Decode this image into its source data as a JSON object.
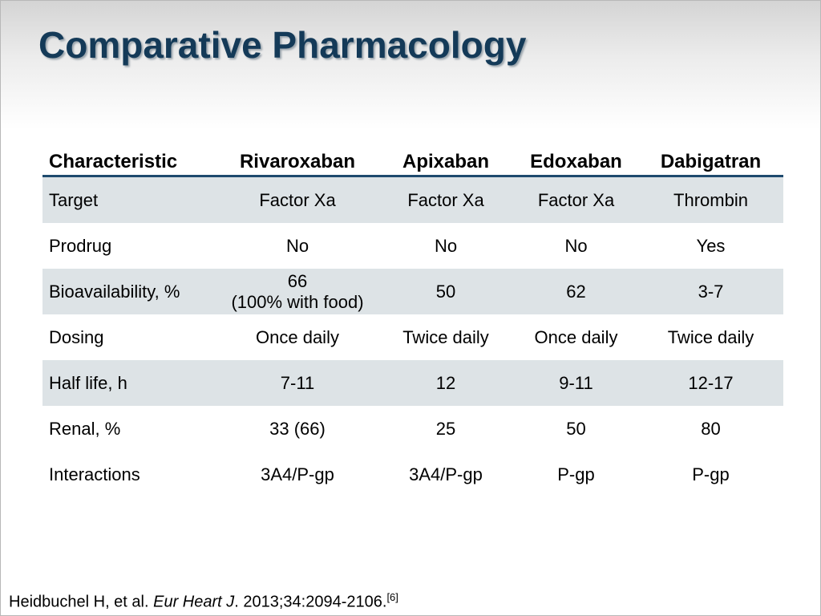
{
  "title": "Comparative Pharmacology",
  "table": {
    "header": [
      "Characteristic",
      "Rivaroxaban",
      "Apixaban",
      "Edoxaban",
      "Dabigatran"
    ],
    "rows": [
      [
        "Target",
        "Factor Xa",
        "Factor Xa",
        "Factor Xa",
        "Thrombin"
      ],
      [
        "Prodrug",
        "No",
        "No",
        "No",
        "Yes"
      ],
      [
        "Bioavailability, %",
        [
          "66",
          "(100% with food)"
        ],
        "50",
        "62",
        "3-7"
      ],
      [
        "Dosing",
        "Once daily",
        "Twice daily",
        "Once daily",
        "Twice daily"
      ],
      [
        "Half life, h",
        "7-11",
        "12",
        "9-11",
        "12-17"
      ],
      [
        "Renal, %",
        "33 (66)",
        "25",
        "50",
        "80"
      ],
      [
        "Interactions",
        "3A4/P-gp",
        "3A4/P-gp",
        "P-gp",
        "P-gp"
      ]
    ]
  },
  "citation": {
    "authors": "Heidbuchel H, et al. ",
    "journal": "Eur Heart J",
    "details": ". 2013;34:2094-2106.",
    "ref": "[6]"
  }
}
